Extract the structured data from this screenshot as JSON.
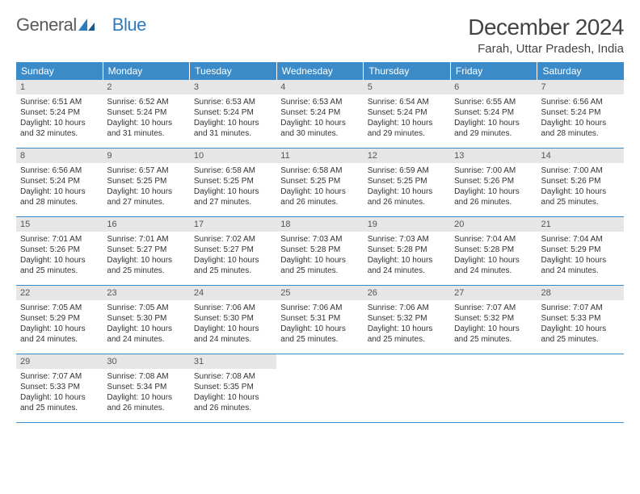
{
  "brand": {
    "part1": "General",
    "part2": "Blue"
  },
  "colors": {
    "header_bg": "#3b8bc9",
    "header_text": "#ffffff",
    "daynum_bg": "#e6e6e6",
    "week_border": "#3b8bc9",
    "text": "#333333",
    "brand_gray": "#5a5a5a",
    "brand_blue": "#2f7bbf"
  },
  "title": "December 2024",
  "location": "Farah, Uttar Pradesh, India",
  "weekdays": [
    "Sunday",
    "Monday",
    "Tuesday",
    "Wednesday",
    "Thursday",
    "Friday",
    "Saturday"
  ],
  "weeks": [
    [
      {
        "n": "1",
        "sr": "Sunrise: 6:51 AM",
        "ss": "Sunset: 5:24 PM",
        "d1": "Daylight: 10 hours",
        "d2": "and 32 minutes."
      },
      {
        "n": "2",
        "sr": "Sunrise: 6:52 AM",
        "ss": "Sunset: 5:24 PM",
        "d1": "Daylight: 10 hours",
        "d2": "and 31 minutes."
      },
      {
        "n": "3",
        "sr": "Sunrise: 6:53 AM",
        "ss": "Sunset: 5:24 PM",
        "d1": "Daylight: 10 hours",
        "d2": "and 31 minutes."
      },
      {
        "n": "4",
        "sr": "Sunrise: 6:53 AM",
        "ss": "Sunset: 5:24 PM",
        "d1": "Daylight: 10 hours",
        "d2": "and 30 minutes."
      },
      {
        "n": "5",
        "sr": "Sunrise: 6:54 AM",
        "ss": "Sunset: 5:24 PM",
        "d1": "Daylight: 10 hours",
        "d2": "and 29 minutes."
      },
      {
        "n": "6",
        "sr": "Sunrise: 6:55 AM",
        "ss": "Sunset: 5:24 PM",
        "d1": "Daylight: 10 hours",
        "d2": "and 29 minutes."
      },
      {
        "n": "7",
        "sr": "Sunrise: 6:56 AM",
        "ss": "Sunset: 5:24 PM",
        "d1": "Daylight: 10 hours",
        "d2": "and 28 minutes."
      }
    ],
    [
      {
        "n": "8",
        "sr": "Sunrise: 6:56 AM",
        "ss": "Sunset: 5:24 PM",
        "d1": "Daylight: 10 hours",
        "d2": "and 28 minutes."
      },
      {
        "n": "9",
        "sr": "Sunrise: 6:57 AM",
        "ss": "Sunset: 5:25 PM",
        "d1": "Daylight: 10 hours",
        "d2": "and 27 minutes."
      },
      {
        "n": "10",
        "sr": "Sunrise: 6:58 AM",
        "ss": "Sunset: 5:25 PM",
        "d1": "Daylight: 10 hours",
        "d2": "and 27 minutes."
      },
      {
        "n": "11",
        "sr": "Sunrise: 6:58 AM",
        "ss": "Sunset: 5:25 PM",
        "d1": "Daylight: 10 hours",
        "d2": "and 26 minutes."
      },
      {
        "n": "12",
        "sr": "Sunrise: 6:59 AM",
        "ss": "Sunset: 5:25 PM",
        "d1": "Daylight: 10 hours",
        "d2": "and 26 minutes."
      },
      {
        "n": "13",
        "sr": "Sunrise: 7:00 AM",
        "ss": "Sunset: 5:26 PM",
        "d1": "Daylight: 10 hours",
        "d2": "and 26 minutes."
      },
      {
        "n": "14",
        "sr": "Sunrise: 7:00 AM",
        "ss": "Sunset: 5:26 PM",
        "d1": "Daylight: 10 hours",
        "d2": "and 25 minutes."
      }
    ],
    [
      {
        "n": "15",
        "sr": "Sunrise: 7:01 AM",
        "ss": "Sunset: 5:26 PM",
        "d1": "Daylight: 10 hours",
        "d2": "and 25 minutes."
      },
      {
        "n": "16",
        "sr": "Sunrise: 7:01 AM",
        "ss": "Sunset: 5:27 PM",
        "d1": "Daylight: 10 hours",
        "d2": "and 25 minutes."
      },
      {
        "n": "17",
        "sr": "Sunrise: 7:02 AM",
        "ss": "Sunset: 5:27 PM",
        "d1": "Daylight: 10 hours",
        "d2": "and 25 minutes."
      },
      {
        "n": "18",
        "sr": "Sunrise: 7:03 AM",
        "ss": "Sunset: 5:28 PM",
        "d1": "Daylight: 10 hours",
        "d2": "and 25 minutes."
      },
      {
        "n": "19",
        "sr": "Sunrise: 7:03 AM",
        "ss": "Sunset: 5:28 PM",
        "d1": "Daylight: 10 hours",
        "d2": "and 24 minutes."
      },
      {
        "n": "20",
        "sr": "Sunrise: 7:04 AM",
        "ss": "Sunset: 5:28 PM",
        "d1": "Daylight: 10 hours",
        "d2": "and 24 minutes."
      },
      {
        "n": "21",
        "sr": "Sunrise: 7:04 AM",
        "ss": "Sunset: 5:29 PM",
        "d1": "Daylight: 10 hours",
        "d2": "and 24 minutes."
      }
    ],
    [
      {
        "n": "22",
        "sr": "Sunrise: 7:05 AM",
        "ss": "Sunset: 5:29 PM",
        "d1": "Daylight: 10 hours",
        "d2": "and 24 minutes."
      },
      {
        "n": "23",
        "sr": "Sunrise: 7:05 AM",
        "ss": "Sunset: 5:30 PM",
        "d1": "Daylight: 10 hours",
        "d2": "and 24 minutes."
      },
      {
        "n": "24",
        "sr": "Sunrise: 7:06 AM",
        "ss": "Sunset: 5:30 PM",
        "d1": "Daylight: 10 hours",
        "d2": "and 24 minutes."
      },
      {
        "n": "25",
        "sr": "Sunrise: 7:06 AM",
        "ss": "Sunset: 5:31 PM",
        "d1": "Daylight: 10 hours",
        "d2": "and 25 minutes."
      },
      {
        "n": "26",
        "sr": "Sunrise: 7:06 AM",
        "ss": "Sunset: 5:32 PM",
        "d1": "Daylight: 10 hours",
        "d2": "and 25 minutes."
      },
      {
        "n": "27",
        "sr": "Sunrise: 7:07 AM",
        "ss": "Sunset: 5:32 PM",
        "d1": "Daylight: 10 hours",
        "d2": "and 25 minutes."
      },
      {
        "n": "28",
        "sr": "Sunrise: 7:07 AM",
        "ss": "Sunset: 5:33 PM",
        "d1": "Daylight: 10 hours",
        "d2": "and 25 minutes."
      }
    ],
    [
      {
        "n": "29",
        "sr": "Sunrise: 7:07 AM",
        "ss": "Sunset: 5:33 PM",
        "d1": "Daylight: 10 hours",
        "d2": "and 25 minutes."
      },
      {
        "n": "30",
        "sr": "Sunrise: 7:08 AM",
        "ss": "Sunset: 5:34 PM",
        "d1": "Daylight: 10 hours",
        "d2": "and 26 minutes."
      },
      {
        "n": "31",
        "sr": "Sunrise: 7:08 AM",
        "ss": "Sunset: 5:35 PM",
        "d1": "Daylight: 10 hours",
        "d2": "and 26 minutes."
      },
      {
        "empty": true
      },
      {
        "empty": true
      },
      {
        "empty": true
      },
      {
        "empty": true
      }
    ]
  ]
}
